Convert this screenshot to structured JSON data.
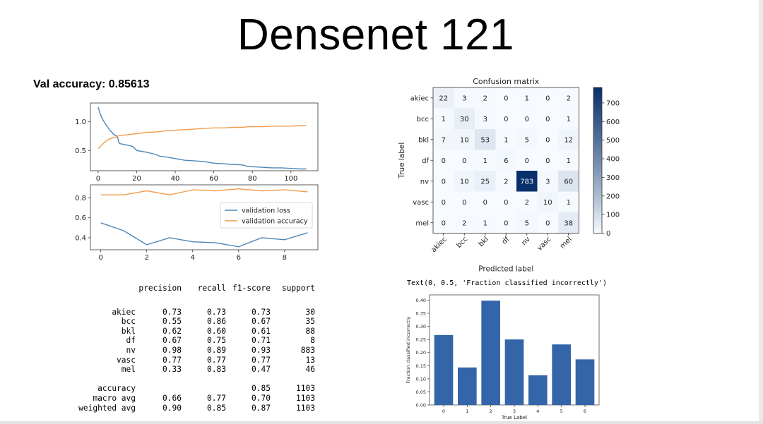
{
  "slide": {
    "title": "Densenet 121",
    "val_accuracy_label": "Val accuracy: 0.85613"
  },
  "text_repr": "Text(0, 0.5, 'Fraction classified incorrectly')",
  "report": {
    "headers": [
      "",
      "precision",
      "recall",
      "f1-score",
      "support"
    ],
    "rows": [
      [
        "akiec",
        "0.73",
        "0.73",
        "0.73",
        "30"
      ],
      [
        "bcc",
        "0.55",
        "0.86",
        "0.67",
        "35"
      ],
      [
        "bkl",
        "0.62",
        "0.60",
        "0.61",
        "88"
      ],
      [
        "df",
        "0.67",
        "0.75",
        "0.71",
        "8"
      ],
      [
        "nv",
        "0.98",
        "0.89",
        "0.93",
        "883"
      ],
      [
        "vasc",
        "0.77",
        "0.77",
        "0.77",
        "13"
      ],
      [
        "mel",
        "0.33",
        "0.83",
        "0.47",
        "46"
      ]
    ],
    "summary_rows": [
      [
        "accuracy",
        "",
        "",
        "0.85",
        "1103"
      ],
      [
        "macro avg",
        "0.66",
        "0.77",
        "0.70",
        "1103"
      ],
      [
        "weighted avg",
        "0.90",
        "0.85",
        "0.87",
        "1103"
      ]
    ]
  },
  "chart_data": [
    {
      "type": "line",
      "title": "",
      "xlabel": "",
      "ylabel": "",
      "xlim": [
        -4,
        114
      ],
      "ylim": [
        0.15,
        1.32
      ],
      "xticks": [
        0,
        20,
        40,
        60,
        80,
        100
      ],
      "yticks": [
        0.5,
        1.0
      ],
      "ytick_labels": [
        "0.5",
        "1.0"
      ],
      "legend": "none",
      "series": [
        {
          "color": "#4c86b8",
          "x": [
            0,
            1,
            2,
            3,
            4,
            5,
            6,
            7,
            8,
            9,
            10,
            11,
            14,
            18,
            20,
            25,
            30,
            32,
            35,
            40,
            45,
            50,
            55,
            60,
            65,
            70,
            75,
            78,
            80,
            85,
            90,
            95,
            100,
            105,
            108
          ],
          "y": [
            1.25,
            1.14,
            1.06,
            1.0,
            0.95,
            0.9,
            0.85,
            0.82,
            0.78,
            0.76,
            0.74,
            0.62,
            0.6,
            0.57,
            0.5,
            0.47,
            0.43,
            0.4,
            0.39,
            0.36,
            0.33,
            0.32,
            0.31,
            0.28,
            0.27,
            0.26,
            0.25,
            0.22,
            0.22,
            0.21,
            0.2,
            0.2,
            0.19,
            0.18,
            0.18
          ]
        },
        {
          "color": "#f59b4c",
          "x": [
            0,
            2,
            4,
            6,
            8,
            10,
            11,
            15,
            20,
            25,
            30,
            35,
            40,
            45,
            50,
            55,
            60,
            65,
            70,
            75,
            78,
            80,
            85,
            90,
            95,
            100,
            105,
            108
          ],
          "y": [
            0.53,
            0.6,
            0.66,
            0.7,
            0.72,
            0.74,
            0.76,
            0.77,
            0.79,
            0.81,
            0.82,
            0.84,
            0.85,
            0.86,
            0.87,
            0.88,
            0.89,
            0.89,
            0.9,
            0.9,
            0.91,
            0.91,
            0.91,
            0.92,
            0.92,
            0.92,
            0.93,
            0.93
          ]
        }
      ]
    },
    {
      "type": "line",
      "title": "",
      "xlabel": "",
      "ylabel": "",
      "xlim": [
        -0.45,
        9.45
      ],
      "ylim": [
        0.28,
        0.93
      ],
      "xticks": [
        0,
        2,
        4,
        6,
        8
      ],
      "yticks": [
        0.4,
        0.6,
        0.8
      ],
      "ytick_labels": [
        "0.4",
        "0.6",
        "0.8"
      ],
      "legend": "right-center",
      "series": [
        {
          "name": "validation loss",
          "color": "#4c86b8",
          "x": [
            0,
            1,
            2,
            3,
            4,
            5,
            6,
            7,
            8,
            9
          ],
          "y": [
            0.55,
            0.47,
            0.33,
            0.4,
            0.36,
            0.35,
            0.31,
            0.4,
            0.38,
            0.45
          ]
        },
        {
          "name": "validation accuracy",
          "color": "#f59b4c",
          "x": [
            0,
            1,
            2,
            3,
            4,
            5,
            6,
            7,
            8,
            9
          ],
          "y": [
            0.83,
            0.83,
            0.87,
            0.83,
            0.88,
            0.87,
            0.89,
            0.87,
            0.88,
            0.86
          ]
        }
      ]
    },
    {
      "type": "heatmap",
      "title": "Confusion matrix",
      "xlabel": "Predicted label",
      "ylabel": "True label",
      "labels": [
        "akiec",
        "bcc",
        "bkl",
        "df",
        "nv",
        "vasc",
        "mel"
      ],
      "matrix": [
        [
          22,
          3,
          2,
          0,
          1,
          0,
          2
        ],
        [
          1,
          30,
          3,
          0,
          0,
          0,
          1
        ],
        [
          7,
          10,
          53,
          1,
          5,
          0,
          12
        ],
        [
          0,
          0,
          1,
          6,
          0,
          0,
          1
        ],
        [
          0,
          10,
          25,
          2,
          783,
          3,
          60
        ],
        [
          0,
          0,
          0,
          0,
          2,
          10,
          1
        ],
        [
          0,
          2,
          1,
          0,
          5,
          0,
          38
        ]
      ],
      "colorbar": {
        "min": 0,
        "max": 783,
        "ticks": [
          0,
          100,
          200,
          300,
          400,
          500,
          600,
          700
        ]
      },
      "colors": {
        "low": "#f7fbff",
        "high": "#08306b"
      }
    },
    {
      "type": "bar",
      "title": "",
      "xlabel": "True Label",
      "ylabel": "Fraction classified incorrectly",
      "categories": [
        "0",
        "1",
        "2",
        "3",
        "4",
        "5",
        "6"
      ],
      "values": [
        0.267,
        0.143,
        0.398,
        0.25,
        0.113,
        0.231,
        0.174
      ],
      "ylim": [
        0,
        0.42
      ],
      "yticks": [
        0.0,
        0.05,
        0.1,
        0.15,
        0.2,
        0.25,
        0.3,
        0.35,
        0.4
      ],
      "ytick_labels": [
        "0.00",
        "0.05",
        "0.10",
        "0.15",
        "0.20",
        "0.25",
        "0.30",
        "0.35",
        "0.40"
      ],
      "color": "#3465a8"
    }
  ]
}
